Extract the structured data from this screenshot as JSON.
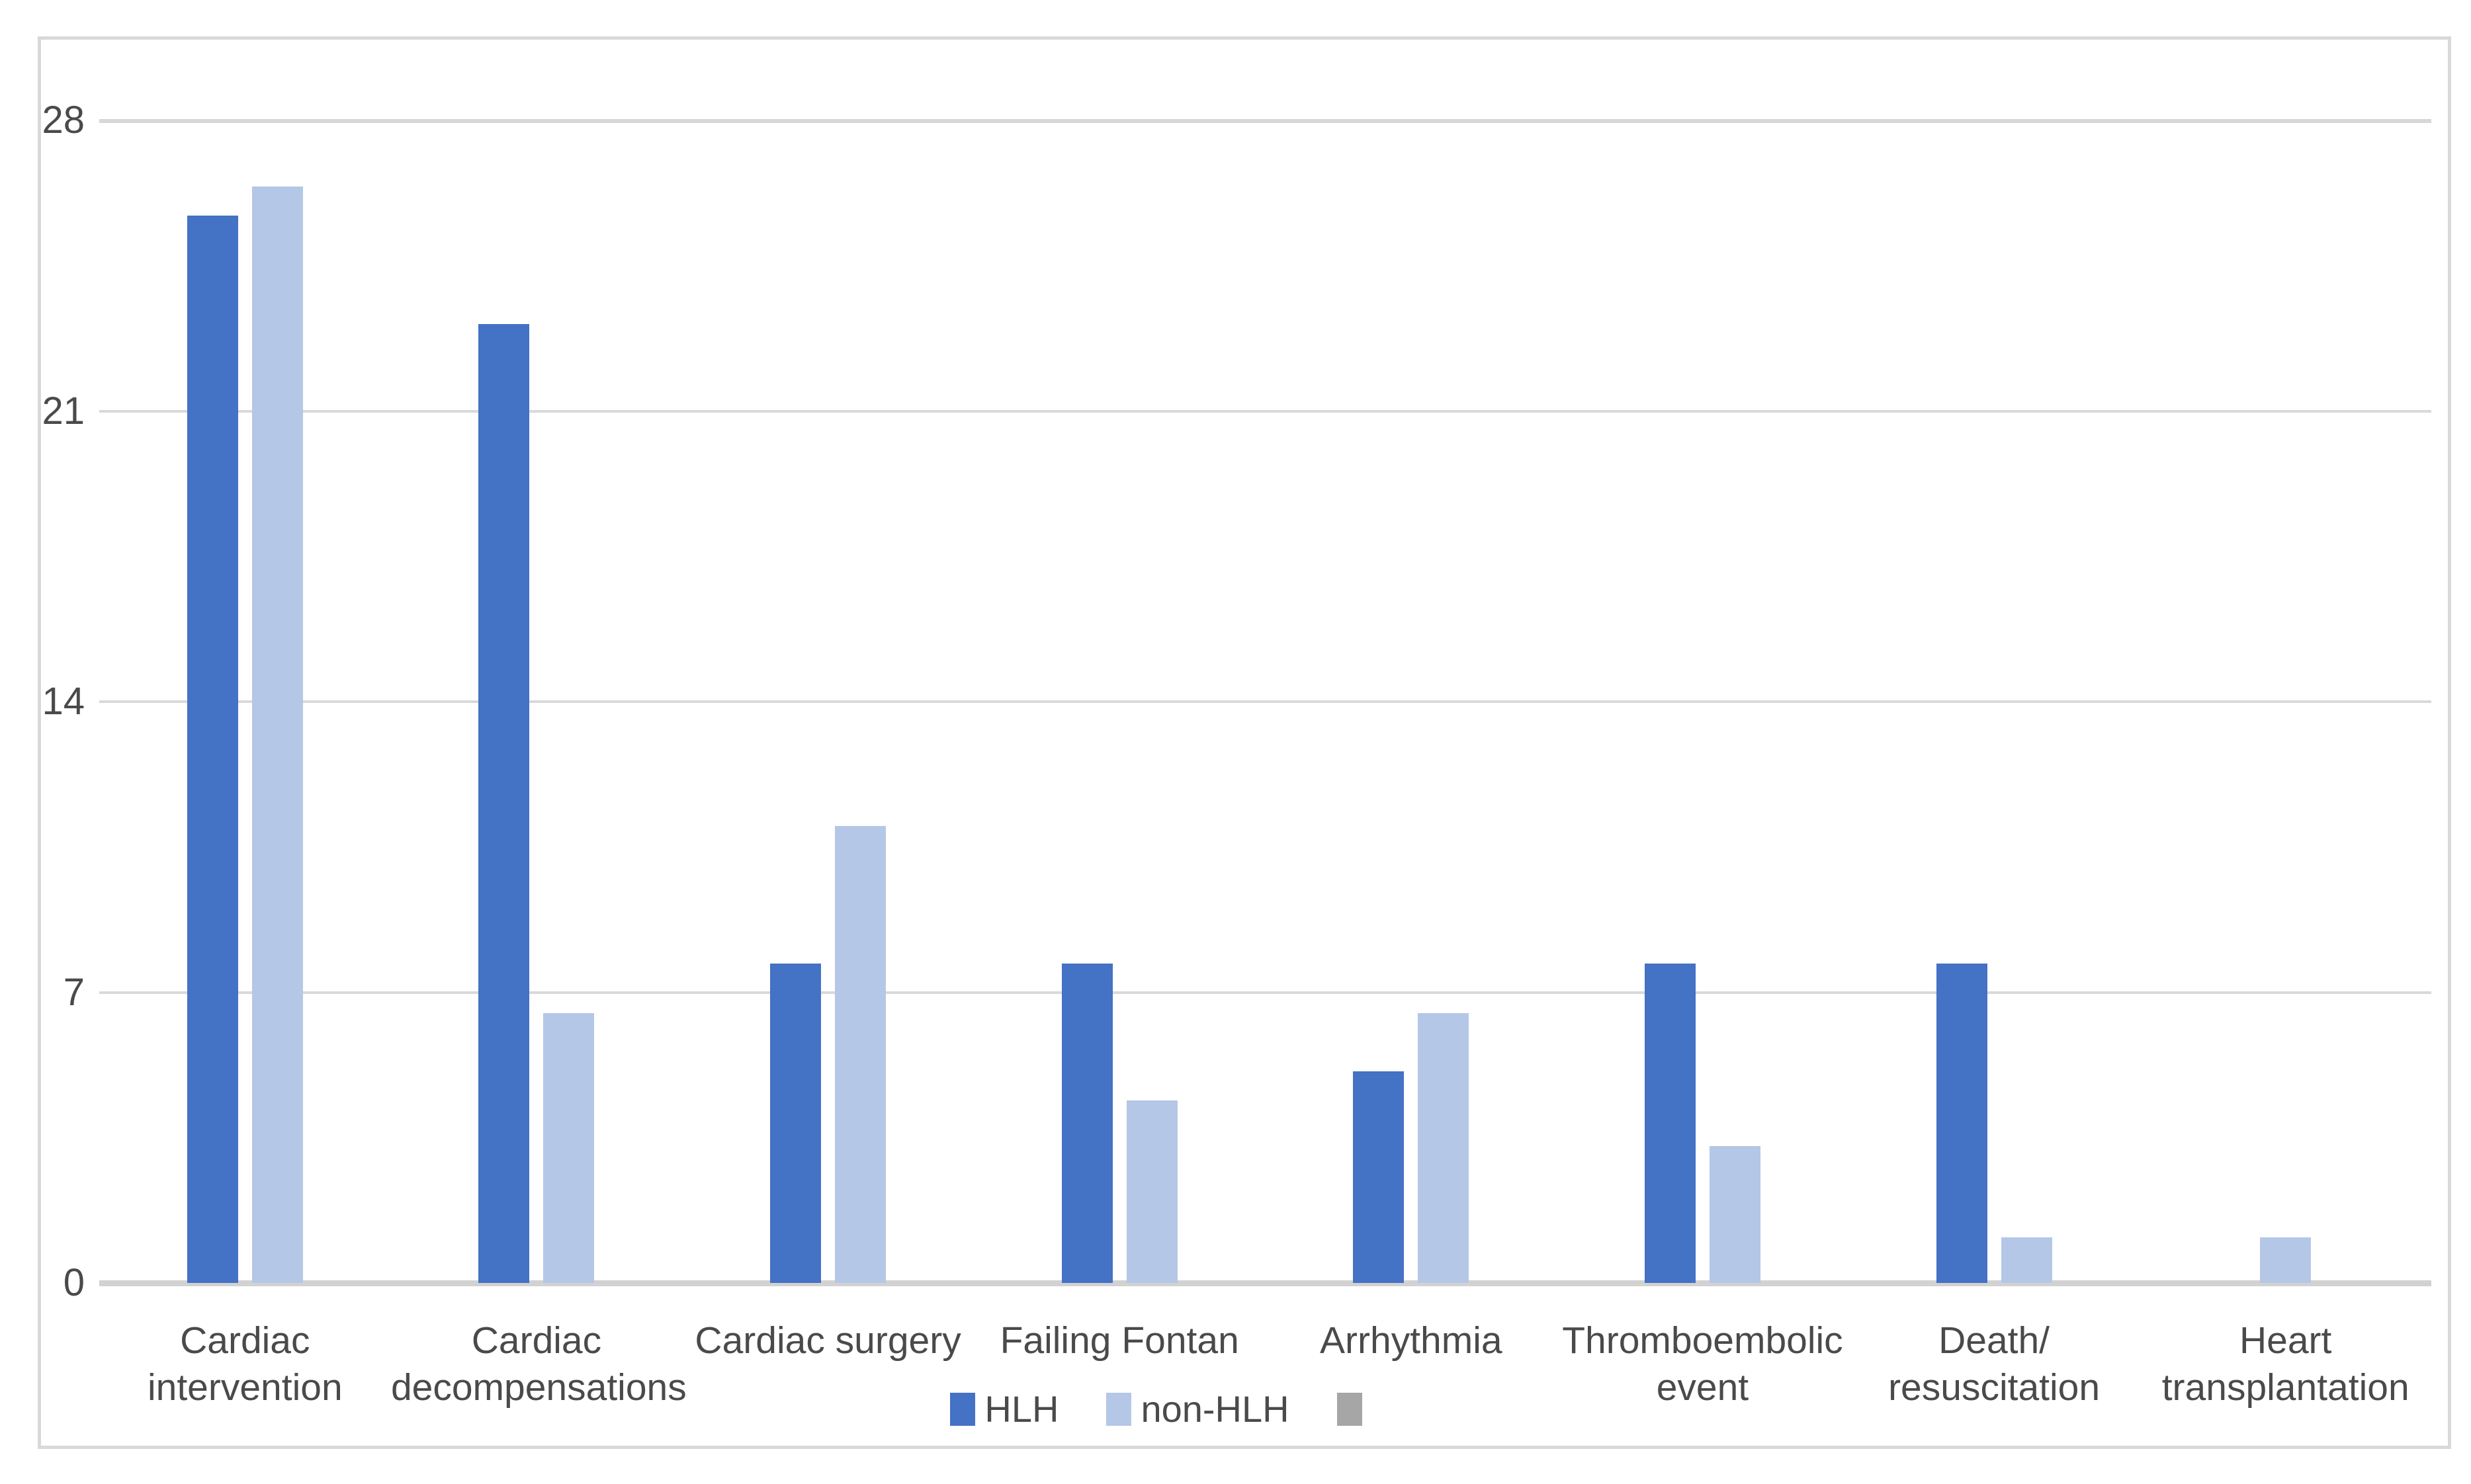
{
  "page": {
    "background": "#ffffff",
    "border_color": "#d9d9d9"
  },
  "styles": {
    "gridline_color": "#d9d9d9",
    "axis_line_color": "#d2d2d2",
    "text_color": "#4a4a4a"
  },
  "chart_data": {
    "type": "bar",
    "title": "",
    "categories": [
      "Cardiac intervention",
      "Cardiac decompensations",
      "Cardiac surgery",
      "Failing Fontan",
      "Arrhythmia",
      "Thromboembolic event",
      "Death/ resuscitation",
      "Heart transplantation"
    ],
    "series": [
      {
        "name": "HLH",
        "color": "#4472C4",
        "values": [
          25.7,
          23.1,
          7.7,
          7.7,
          5.1,
          7.7,
          7.7,
          0
        ]
      },
      {
        "name": "non-HLH",
        "color": "#B4C7E7",
        "values": [
          26.4,
          6.5,
          11,
          4.4,
          6.5,
          3.3,
          1.1,
          1.1
        ]
      },
      {
        "name": "",
        "color": "#A6A6A6",
        "values": [
          0,
          0,
          0,
          0,
          0,
          0,
          0,
          0
        ]
      }
    ],
    "y_axis": {
      "min": 0,
      "max": 28,
      "ticks": [
        0,
        7,
        14,
        21,
        28
      ]
    },
    "x_axis_label": "",
    "y_axis_label": "",
    "grid": true,
    "legend_position": "bottom-center"
  }
}
